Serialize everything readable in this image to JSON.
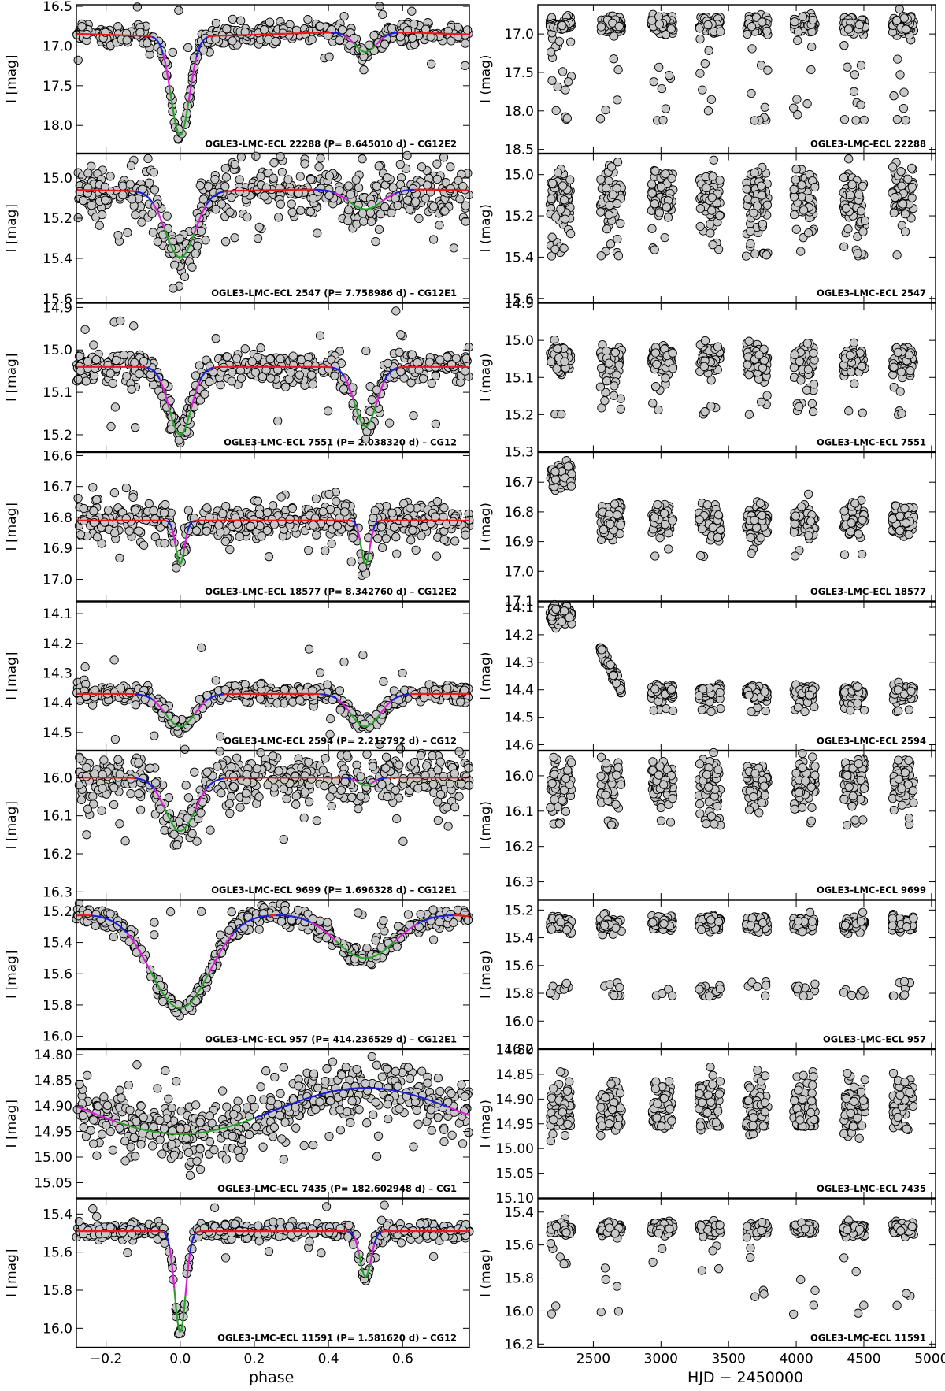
{
  "figure": {
    "left_x_label": "phase",
    "right_x_label": "HJD − 2450000",
    "left_y_label": "I [mag]",
    "right_y_label": "I (mag)",
    "left_x_ticks": [
      -0.2,
      0,
      0.2,
      0.4,
      0.6
    ],
    "left_x_tick_labels": [
      "−0.2",
      "0.0",
      "0.2",
      "0.4",
      "0.6"
    ],
    "right_x_ticks": [
      2500,
      3000,
      3500,
      4000,
      4500,
      5000
    ],
    "right_x_tick_labels": [
      "2500",
      "3000",
      "3500",
      "4000",
      "4500",
      "5000"
    ],
    "colors": {
      "points_fill": "#c8c8c8",
      "points_edge": "#000000",
      "model_out": "#e41a1c",
      "model_wing": "#1f1fd6",
      "model_mid": "#d61fd6",
      "model_core": "#2ca02c"
    }
  },
  "chart_data": [
    {
      "type": "scatter",
      "panel": "phased-light-curve",
      "star": "OGLE3-LMC-ECL 22288",
      "label_left": "OGLE3-LMC-ECL 22288  (P= 8.645010 d) – CG12E2",
      "label_right": "OGLE3-LMC-ECL 22288",
      "xlim": [
        -0.28,
        0.78
      ],
      "ylim_left": [
        18.35,
        16.48
      ],
      "ylim_right": [
        18.55,
        16.62
      ],
      "yticks_left": [
        "16.5",
        "17.0",
        "17.5",
        "18.0"
      ],
      "yticks_right": [
        "17.0",
        "17.5",
        "18.0",
        "18.5"
      ],
      "model": {
        "base": 16.85,
        "amp": 0.05,
        "d1": 1.25,
        "w1": 0.025,
        "d2": 0.25,
        "w2": 0.03,
        "phase2": 0.5
      },
      "lc": {
        "mean": 16.88,
        "sig": 0.06,
        "outlier_low": 18.05,
        "spread": 0.4
      }
    },
    {
      "type": "scatter",
      "panel": "phased-light-curve",
      "star": "OGLE3-LMC-ECL 2547",
      "label_left": "OGLE3-LMC-ECL 2547  (P= 7.758986 d) – CG12E1",
      "label_right": "OGLE3-LMC-ECL 2547",
      "xlim": [
        -0.28,
        0.78
      ],
      "ylim_left": [
        15.62,
        14.88
      ],
      "ylim_right": [
        15.62,
        14.9
      ],
      "yticks_left": [
        "15.0",
        "15.2",
        "15.4",
        "15.6"
      ],
      "yticks_right": [
        "15.0",
        "15.2",
        "15.4",
        "15.6"
      ],
      "model": {
        "base": 15.06,
        "amp": 0.01,
        "d1": 0.33,
        "w1": 0.04,
        "d2": 0.1,
        "w2": 0.045,
        "phase2": 0.5
      },
      "lc": {
        "mean": 15.1,
        "sig": 0.07,
        "outlier_low": 15.5,
        "spread": 0.25
      }
    },
    {
      "type": "scatter",
      "panel": "phased-light-curve",
      "star": "OGLE3-LMC-ECL 7551",
      "label_left": "OGLE3-LMC-ECL 7551  (P= 2.038320 d) – CG12",
      "label_right": "OGLE3-LMC-ECL 7551",
      "xlim": [
        -0.28,
        0.78
      ],
      "ylim_left": [
        15.24,
        14.89
      ],
      "ylim_right": [
        15.3,
        14.9
      ],
      "yticks_left": [
        "14.9",
        "15.0",
        "15.1",
        "15.2"
      ],
      "yticks_right": [
        "14.9",
        "15.0",
        "15.1",
        "15.2",
        "15.3"
      ],
      "model": {
        "base": 15.04,
        "amp": 0.0,
        "d1": 0.16,
        "w1": 0.03,
        "d2": 0.14,
        "w2": 0.03,
        "phase2": 0.5
      },
      "lc": {
        "mean": 15.05,
        "sig": 0.02,
        "outlier_low": 15.2,
        "spread": 0.15
      }
    },
    {
      "type": "scatter",
      "panel": "phased-light-curve",
      "star": "OGLE3-LMC-ECL 18577",
      "label_left": "OGLE3-LMC-ECL 18577  (P= 8.342760 d) – CG12E2",
      "label_right": "OGLE3-LMC-ECL 18577",
      "xlim": [
        -0.28,
        0.78
      ],
      "ylim_left": [
        17.07,
        16.59
      ],
      "ylim_right": [
        17.1,
        16.6
      ],
      "yticks_left": [
        "16.6",
        "16.7",
        "16.8",
        "16.9",
        "17.0"
      ],
      "yticks_right": [
        "16.7",
        "16.8",
        "16.9",
        "17.0",
        "17.1"
      ],
      "model": {
        "base": 16.81,
        "amp": 0.0,
        "d1": 0.14,
        "w1": 0.012,
        "d2": 0.14,
        "w2": 0.012,
        "phase2": 0.5
      },
      "lc": {
        "mean": 16.83,
        "sig": 0.03,
        "outlier_low": 16.65,
        "spread": 0.15
      }
    },
    {
      "type": "scatter",
      "panel": "phased-light-curve",
      "star": "OGLE3-LMC-ECL 2594",
      "label_left": "OGLE3-LMC-ECL 2594  (P= 2.212792 d) – CG12",
      "label_right": "OGLE3-LMC-ECL 2594",
      "xlim": [
        -0.28,
        0.78
      ],
      "ylim_left": [
        14.56,
        14.06
      ],
      "ylim_right": [
        14.62,
        14.08
      ],
      "yticks_left": [
        "14.1",
        "14.2",
        "14.3",
        "14.4",
        "14.5"
      ],
      "yticks_right": [
        "14.1",
        "14.2",
        "14.3",
        "14.4",
        "14.5",
        "14.6"
      ],
      "model": {
        "base": 14.37,
        "amp": 0.0,
        "d1": 0.11,
        "w1": 0.04,
        "d2": 0.11,
        "w2": 0.04,
        "phase2": 0.5
      },
      "lc": {
        "mean": 14.41,
        "sig": 0.015,
        "outlier_low": 14.12,
        "spread": 0.2
      }
    },
    {
      "type": "scatter",
      "panel": "phased-light-curve",
      "star": "OGLE3-LMC-ECL 9699",
      "label_left": "OGLE3-LMC-ECL 9699  (P= 1.696328 d) – CG12E1",
      "label_right": "OGLE3-LMC-ECL 9699",
      "xlim": [
        -0.28,
        0.78
      ],
      "ylim_left": [
        16.32,
        15.93
      ],
      "ylim_right": [
        16.35,
        15.93
      ],
      "yticks_left": [
        "16.0",
        "16.1",
        "16.2",
        "16.3"
      ],
      "yticks_right": [
        "16.0",
        "16.1",
        "16.2",
        "16.3"
      ],
      "model": {
        "base": 16.0,
        "amp": 0.0,
        "d1": 0.14,
        "w1": 0.04,
        "d2": 0.02,
        "w2": 0.02,
        "phase2": 0.5
      },
      "lc": {
        "mean": 16.02,
        "sig": 0.035,
        "outlier_low": 16.25,
        "spread": 0.15
      }
    },
    {
      "type": "scatter",
      "panel": "phased-light-curve",
      "star": "OGLE3-LMC-ECL 957",
      "label_left": "OGLE3-LMC-ECL 957  (P= 414.236529 d) – CG12E1",
      "label_right": "OGLE3-LMC-ECL 957",
      "xlim": [
        -0.28,
        0.78
      ],
      "ylim_left": [
        16.08,
        15.13
      ],
      "ylim_right": [
        16.2,
        15.13
      ],
      "yticks_left": [
        "15.2",
        "15.4",
        "15.6",
        "15.8",
        "16.0"
      ],
      "yticks_right": [
        "15.2",
        "15.4",
        "15.6",
        "15.8",
        "16.0",
        "16.2"
      ],
      "model": {
        "base": 15.22,
        "amp": 0.0,
        "d1": 0.6,
        "w1": 0.08,
        "d2": 0.28,
        "w2": 0.08,
        "phase2": 0.5
      },
      "lc": {
        "mean": 15.3,
        "sig": 0.03,
        "outlier_low": 15.8,
        "spread": 0.1
      }
    },
    {
      "type": "scatter",
      "panel": "phased-light-curve",
      "star": "OGLE3-LMC-ECL 7435",
      "label_left": "OGLE3-LMC-ECL 7435  (P= 182.602948 d) – CG1",
      "label_right": "OGLE3-LMC-ECL 7435",
      "xlim": [
        -0.28,
        0.78
      ],
      "ylim_left": [
        15.08,
        14.79
      ],
      "ylim_right": [
        15.1,
        14.8
      ],
      "yticks_left": [
        "14.80",
        "14.85",
        "14.90",
        "14.95",
        "15.00",
        "15.05"
      ],
      "yticks_right": [
        "14.80",
        "14.85",
        "14.90",
        "14.95",
        "15.00",
        "15.05",
        "15.10"
      ],
      "model": {
        "base": 14.91,
        "amp": 0.045,
        "d1": 0.0,
        "w1": 0.2,
        "d2": 0.0,
        "w2": 0.2,
        "phase2": 0.5
      },
      "lc": {
        "mean": 14.91,
        "sig": 0.03,
        "outlier_low": 15.03,
        "spread": 0.1
      }
    },
    {
      "type": "scatter",
      "panel": "phased-light-curve",
      "star": "OGLE3-LMC-ECL 11591",
      "label_left": "OGLE3-LMC-ECL 11591  (P= 1.581620 d) – CG12",
      "label_right": "OGLE3-LMC-ECL 11591",
      "xlim": [
        -0.28,
        0.78
      ],
      "ylim_left": [
        16.1,
        15.32
      ],
      "ylim_right": [
        16.22,
        15.32
      ],
      "yticks_left": [
        "15.4",
        "15.6",
        "15.8",
        "16.0"
      ],
      "yticks_right": [
        "15.4",
        "15.6",
        "15.8",
        "16.0",
        "16.2"
      ],
      "model": {
        "base": 15.49,
        "amp": 0.0,
        "d1": 0.53,
        "w1": 0.015,
        "d2": 0.24,
        "w2": 0.015,
        "phase2": 0.5
      },
      "lc": {
        "mean": 15.5,
        "sig": 0.02,
        "outlier_low": 15.85,
        "spread": 0.15
      }
    }
  ]
}
